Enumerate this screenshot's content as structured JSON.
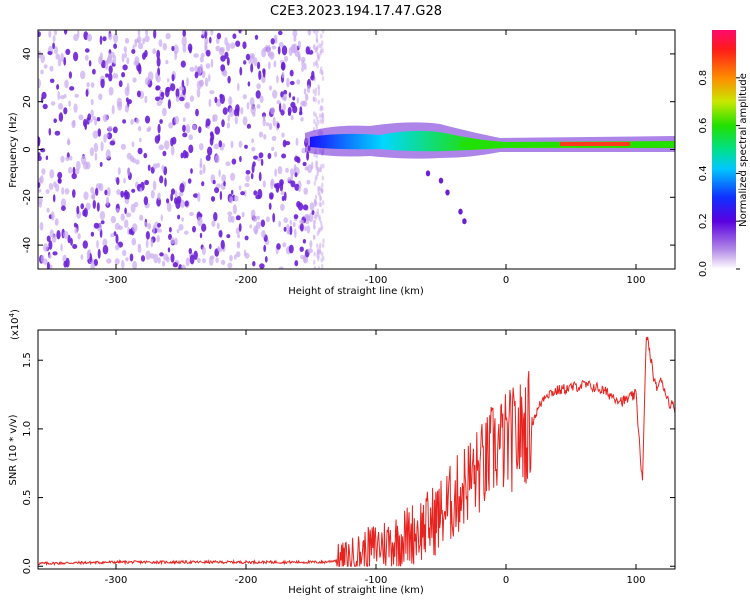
{
  "figure_title": "C2E3.2023.194.17.47.G28",
  "colors": {
    "axis": "#000000",
    "snr_line": "#e8231f",
    "scatter": "#6a1fd6",
    "scatter_light": "#c9a8f0"
  },
  "chart_data": [
    {
      "type": "heatmap",
      "title": "C2E3.2023.194.17.47.G28",
      "xlabel": "Height of straight line (km)",
      "ylabel": "Frequency (Hz)",
      "xlim": [
        -360,
        130
      ],
      "ylim": [
        -50,
        50
      ],
      "x_ticks": [
        -300,
        -200,
        -100,
        0,
        100
      ],
      "x_tick_labels": [
        "-300",
        "-200",
        "-100",
        "0",
        "100"
      ],
      "y_ticks": [
        -40,
        -20,
        0,
        20,
        40
      ],
      "y_tick_labels": [
        "-40",
        "-20",
        "0",
        "20",
        "40"
      ],
      "colorbar": {
        "label": "Normalized spectral amplitude",
        "range": [
          0.0,
          1.0
        ],
        "ticks": [
          0.0,
          0.2,
          0.4,
          0.6,
          0.8
        ],
        "tick_labels": [
          "0.0",
          "0.2",
          "0.4",
          "0.6",
          "0.8"
        ]
      },
      "features": [
        {
          "description_label": "noise",
          "x_range": [
            -360,
            -148
          ],
          "freq_range": [
            -50,
            50
          ],
          "amplitude": 0.12
        },
        {
          "description_label": "carrier",
          "x_range": [
            -148,
            130
          ],
          "freq_center": 2,
          "amplitude": 0.6
        },
        {
          "description_label": "tail",
          "points": [
            [
              -60,
              -10
            ],
            [
              -50,
              -13
            ],
            [
              -45,
              -18
            ],
            [
              -35,
              -26
            ],
            [
              -32,
              -30
            ]
          ],
          "amplitude": 0.15
        }
      ]
    },
    {
      "type": "line",
      "xlabel": "Height of straight line (km)",
      "ylabel": "SNR (10 * v/v)",
      "y_scale_label": "(x10",
      "y_scale_exponent": "4",
      "y_scale_close": ")",
      "xlim": [
        -360,
        130
      ],
      "ylim": [
        -0.02,
        1.72
      ],
      "x_ticks": [
        -300,
        -200,
        -100,
        0,
        100
      ],
      "x_tick_labels": [
        "-300",
        "-200",
        "-100",
        "0",
        "100"
      ],
      "y_ticks": [
        0.0,
        0.5,
        1.0,
        1.5
      ],
      "y_tick_labels": [
        "0.0",
        "0.5",
        "1.0",
        "1.5"
      ],
      "series": [
        {
          "name": "SNR",
          "points": [
            [
              -360,
              0.02
            ],
            [
              -300,
              0.03
            ],
            [
              -200,
              0.03
            ],
            [
              -140,
              0.03
            ],
            [
              -125,
              0.05
            ],
            [
              -110,
              0.1
            ],
            [
              -100,
              0.15
            ],
            [
              -85,
              0.18
            ],
            [
              -70,
              0.25
            ],
            [
              -60,
              0.3
            ],
            [
              -50,
              0.38
            ],
            [
              -40,
              0.48
            ],
            [
              -30,
              0.62
            ],
            [
              -20,
              0.7
            ],
            [
              -15,
              0.75
            ],
            [
              -10,
              0.85
            ],
            [
              0,
              0.9
            ],
            [
              10,
              0.95
            ],
            [
              20,
              1.05
            ],
            [
              30,
              1.25
            ],
            [
              40,
              1.28
            ],
            [
              50,
              1.3
            ],
            [
              60,
              1.32
            ],
            [
              70,
              1.3
            ],
            [
              80,
              1.25
            ],
            [
              90,
              1.2
            ],
            [
              100,
              1.25
            ],
            [
              105,
              0.6
            ],
            [
              108,
              1.7
            ],
            [
              115,
              1.3
            ],
            [
              120,
              1.35
            ],
            [
              125,
              1.2
            ],
            [
              130,
              1.15
            ]
          ]
        }
      ]
    }
  ]
}
